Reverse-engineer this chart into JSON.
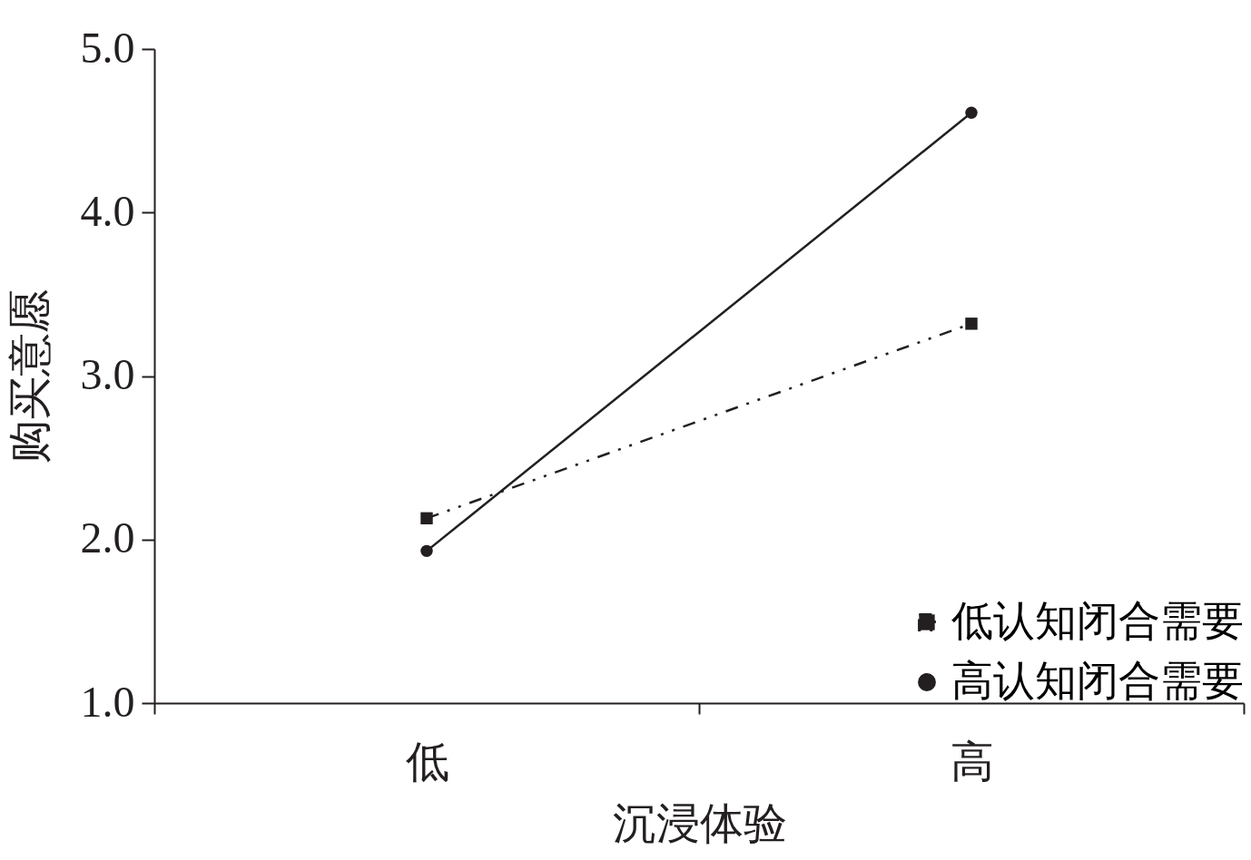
{
  "chart_data": {
    "type": "line",
    "xlabel": "沉浸体验",
    "ylabel": "购买意愿",
    "categories": [
      "低",
      "高"
    ],
    "series": [
      {
        "name": "低认知闭合需要",
        "color": "#231f20",
        "values": [
          2.13,
          3.32
        ],
        "marker": "square",
        "line_style": "dashed"
      },
      {
        "name": "高认知闭合需要",
        "color": "#231f20",
        "values": [
          1.93,
          4.61
        ],
        "marker": "circle",
        "line_style": "solid"
      }
    ],
    "ylim": [
      1,
      5
    ],
    "yticks": [
      {
        "value": 1,
        "label": "1.0"
      },
      {
        "value": 2,
        "label": "2.0"
      },
      {
        "value": 3,
        "label": "3.0"
      },
      {
        "value": 4,
        "label": "4.0"
      },
      {
        "value": 5,
        "label": "5.0"
      }
    ],
    "grid": false,
    "legend": "bottom right"
  }
}
